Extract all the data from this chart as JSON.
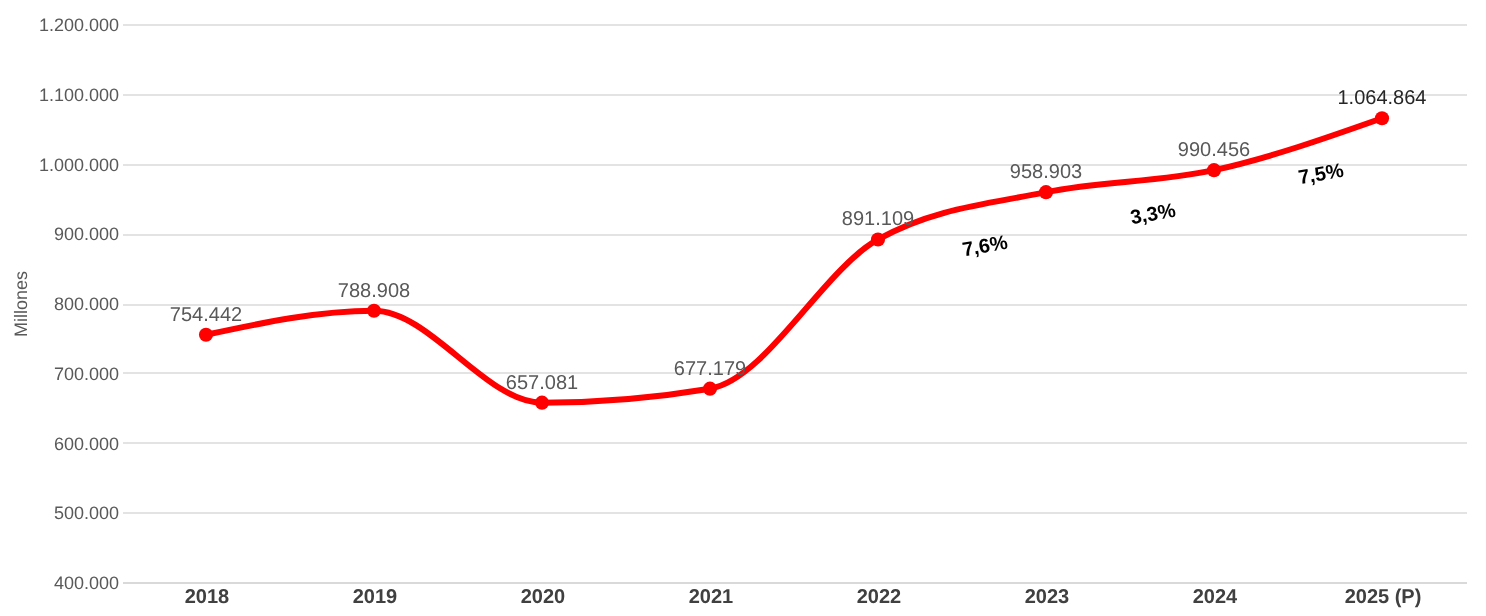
{
  "chart_data": {
    "type": "line",
    "ylabel": "Millones",
    "categories": [
      "2018",
      "2019",
      "2020",
      "2021",
      "2022",
      "2023",
      "2024",
      "2025 (P)"
    ],
    "series": [
      {
        "color": "#ff0000",
        "values": [
          754442,
          788908,
          657081,
          677179,
          891109,
          958903,
          990456,
          1064864
        ],
        "value_labels": [
          "754.442",
          "788.908",
          "657.081",
          "677.179",
          "891.109",
          "958.903",
          "990.456",
          "1.064.864"
        ]
      }
    ],
    "ylim": [
      400000,
      1200000
    ],
    "yticks": [
      {
        "value": 400000,
        "label": "400.000"
      },
      {
        "value": 500000,
        "label": "500.000"
      },
      {
        "value": 600000,
        "label": "600.000"
      },
      {
        "value": 700000,
        "label": "700.000"
      },
      {
        "value": 800000,
        "label": "800.000"
      },
      {
        "value": 900000,
        "label": "900.000"
      },
      {
        "value": 1000000,
        "label": "1.000.000"
      },
      {
        "value": 1100000,
        "label": "1.100.000"
      },
      {
        "value": 1200000,
        "label": "1.200.000"
      }
    ],
    "grid": "y",
    "marker": "circle",
    "line_style": "solid",
    "annotations": [
      "7,6%",
      "3,3%",
      "7,5%"
    ]
  }
}
